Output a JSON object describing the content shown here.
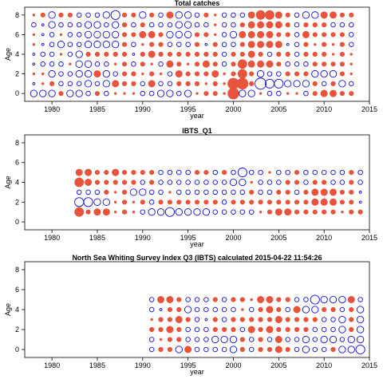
{
  "chart_data": [
    {
      "type": "bubble",
      "title": "Total catches",
      "xlabel": "year",
      "ylabel": "Age",
      "xlim": [
        1977,
        2015
      ],
      "ylim": [
        -0.8,
        8.8
      ],
      "xticks": [
        1980,
        1985,
        1990,
        1995,
        2000,
        2005,
        2010,
        2015
      ],
      "yticks": [
        0,
        2,
        4,
        6,
        8
      ],
      "ages": [
        0,
        1,
        2,
        3,
        4,
        5,
        6,
        7,
        8
      ],
      "years": [
        1978,
        1979,
        1980,
        1981,
        1982,
        1983,
        1984,
        1985,
        1986,
        1987,
        1988,
        1989,
        1990,
        1991,
        1992,
        1993,
        1994,
        1995,
        1996,
        1997,
        1998,
        1999,
        2000,
        2001,
        2002,
        2003,
        2004,
        2005,
        2006,
        2007,
        2008,
        2009,
        2010,
        2011,
        2012,
        2013
      ],
      "residuals_by_age": [
        [
          -3,
          -3,
          -3,
          2,
          -3,
          -3,
          -2,
          2,
          -2,
          1,
          1,
          1,
          -2,
          -2,
          -3,
          -3,
          -2,
          -3,
          1,
          2,
          2,
          1,
          5,
          -3,
          -3,
          1,
          -2,
          -2,
          1,
          1,
          -2,
          2,
          3,
          3,
          2,
          2
        ],
        [
          -1,
          1,
          2,
          -2,
          -2,
          -2,
          -3,
          -2,
          -3,
          3,
          2,
          2,
          -2,
          3,
          -2,
          -2,
          2,
          2,
          2,
          1,
          2,
          1,
          5,
          5,
          2,
          -5,
          -4,
          -4,
          -3,
          -3,
          -3,
          2,
          -2,
          2,
          -3,
          -2
        ],
        [
          1,
          1,
          -3,
          -2,
          -2,
          -3,
          -3,
          3,
          -3,
          -2,
          2,
          2,
          1,
          2,
          1,
          -2,
          3,
          2,
          2,
          2,
          3,
          1,
          2,
          4,
          2,
          -3,
          -2,
          -2,
          2,
          2,
          2,
          -3,
          -3,
          -3,
          2,
          1
        ],
        [
          -1,
          -2,
          -2,
          -2,
          1,
          -3,
          -3,
          -2,
          -2,
          1,
          2,
          -2,
          2,
          1,
          -2,
          3,
          2,
          1,
          2,
          3,
          2,
          -2,
          2,
          4,
          3,
          3,
          3,
          2,
          -2,
          -2,
          -2,
          2,
          2,
          2,
          2,
          1
        ],
        [
          -1,
          -2,
          -2,
          1,
          -2,
          -3,
          2,
          2,
          2,
          2,
          2,
          -1,
          2,
          3,
          2,
          2,
          2,
          2,
          2,
          2,
          2,
          -2,
          2,
          2,
          3,
          2,
          -2,
          2,
          2,
          -2,
          2,
          2,
          2,
          1,
          2,
          1
        ],
        [
          1,
          -1,
          -2,
          -3,
          -2,
          -2,
          -3,
          -3,
          -3,
          -3,
          2,
          -2,
          1,
          2,
          2,
          -2,
          -2,
          -2,
          2,
          -1,
          2,
          -2,
          -2,
          2,
          3,
          3,
          3,
          3,
          -1,
          -2,
          2,
          1,
          2,
          1,
          2,
          -2
        ],
        [
          1,
          -1,
          -2,
          1,
          -2,
          -2,
          -3,
          -3,
          -3,
          -3,
          2,
          2,
          3,
          3,
          2,
          -3,
          -3,
          -3,
          2,
          2,
          1,
          -2,
          -3,
          3,
          3,
          3,
          3,
          2,
          2,
          -2,
          3,
          2,
          2,
          2,
          2,
          -2
        ],
        [
          -2,
          -1,
          -3,
          -2,
          -2,
          -2,
          -3,
          -3,
          -2,
          -3,
          2,
          -2,
          2,
          -2,
          -2,
          -2,
          -3,
          -3,
          -2,
          -2,
          1,
          -2,
          -2,
          2,
          3,
          3,
          3,
          3,
          2,
          -2,
          2,
          2,
          2,
          -2,
          -2,
          -2
        ],
        [
          1,
          2,
          -3,
          2,
          2,
          -2,
          -2,
          -2,
          -3,
          -4,
          2,
          2,
          -3,
          2,
          -2,
          3,
          -3,
          -3,
          -2,
          2,
          1,
          -2,
          -2,
          -2,
          3,
          4,
          4,
          3,
          2,
          -2,
          -3,
          -3,
          3,
          3,
          2,
          2
        ]
      ]
    },
    {
      "type": "bubble",
      "title": "IBTS_Q1",
      "xlabel": "year",
      "ylabel": "Age",
      "xlim": [
        1977,
        2015
      ],
      "ylim": [
        -0.8,
        8.8
      ],
      "xticks": [
        1980,
        1985,
        1990,
        1995,
        2000,
        2005,
        2010,
        2015
      ],
      "yticks": [
        0,
        2,
        4,
        6,
        8
      ],
      "ages": [
        1,
        2,
        3,
        4,
        5
      ],
      "years": [
        1983,
        1984,
        1985,
        1986,
        1987,
        1988,
        1989,
        1990,
        1991,
        1992,
        1993,
        1994,
        1995,
        1996,
        1997,
        1998,
        1999,
        2000,
        2001,
        2002,
        2003,
        2004,
        2005,
        2006,
        2007,
        2008,
        2009,
        2010,
        2011,
        2012,
        2013,
        2014
      ],
      "residuals_by_age": [
        [
          4,
          2,
          3,
          3,
          1,
          2,
          1,
          -2,
          -3,
          -3,
          -4,
          -3,
          -3,
          -3,
          -3,
          -2,
          -2,
          -2,
          -2,
          -2,
          1,
          2,
          3,
          3,
          2,
          2,
          2,
          2,
          2,
          1,
          2,
          2
        ],
        [
          -4,
          -4,
          -3,
          -3,
          1,
          2,
          1,
          2,
          -2,
          2,
          2,
          2,
          2,
          2,
          2,
          2,
          -2,
          2,
          2,
          2,
          2,
          2,
          2,
          2,
          2,
          2,
          3,
          3,
          3,
          2,
          2,
          -1
        ],
        [
          -2,
          -2,
          -2,
          2,
          1,
          2,
          -3,
          -3,
          -2,
          -2,
          1,
          -2,
          -2,
          -2,
          -2,
          -2,
          -2,
          -2,
          -2,
          2,
          -2,
          -2,
          2,
          2,
          -2,
          2,
          3,
          3,
          3,
          2,
          2,
          -1
        ],
        [
          4,
          3,
          2,
          2,
          2,
          2,
          2,
          -2,
          2,
          -2,
          -2,
          -2,
          -2,
          -2,
          -2,
          -2,
          -2,
          -3,
          -3,
          1,
          -2,
          -2,
          -2,
          2,
          2,
          -2,
          2,
          2,
          -2,
          -2,
          2,
          -2
        ],
        [
          3,
          3,
          2,
          2,
          3,
          2,
          2,
          2,
          2,
          -2,
          -2,
          -2,
          -2,
          2,
          2,
          -2,
          2,
          -2,
          -4,
          -2,
          -2,
          1,
          -2,
          -2,
          2,
          -2,
          -2,
          -2,
          -2,
          -2,
          2,
          -2
        ]
      ]
    },
    {
      "type": "bubble",
      "title": "North Sea Whiting Survey Index Q3 (IBTS) calculated 2015-04-22 11:54:26",
      "xlabel": "year",
      "ylabel": "Age",
      "xlim": [
        1977,
        2015
      ],
      "ylim": [
        -0.8,
        8.8
      ],
      "xticks": [
        1980,
        1985,
        1990,
        1995,
        2000,
        2005,
        2010,
        2015
      ],
      "yticks": [
        0,
        2,
        4,
        6,
        8
      ],
      "ages": [
        0,
        1,
        2,
        3,
        4,
        5
      ],
      "years": [
        1991,
        1992,
        1993,
        1994,
        1995,
        1996,
        1997,
        1998,
        1999,
        2000,
        2001,
        2002,
        2003,
        2004,
        2005,
        2006,
        2007,
        2008,
        2009,
        2010,
        2011,
        2012,
        2013,
        2014
      ],
      "residuals_by_age": [
        [
          -2,
          2,
          2,
          -3,
          3,
          -2,
          -2,
          -2,
          -2,
          -3,
          2,
          -2,
          2,
          2,
          3,
          2,
          -2,
          -3,
          -2,
          -2,
          2,
          -3,
          -3,
          -4
        ],
        [
          -2,
          1,
          2,
          2,
          -2,
          -2,
          -2,
          -3,
          -3,
          -3,
          2,
          -2,
          2,
          -2,
          3,
          -2,
          -2,
          -3,
          -2,
          -3,
          -3,
          -2,
          -3,
          -3
        ],
        [
          2,
          2,
          3,
          2,
          -2,
          -2,
          -2,
          2,
          2,
          2,
          -2,
          3,
          2,
          3,
          2,
          2,
          2,
          2,
          -2,
          -2,
          -2,
          -3,
          2,
          -3
        ],
        [
          1,
          2,
          2,
          3,
          2,
          -2,
          -1,
          2,
          -2,
          2,
          2,
          2,
          2,
          2,
          3,
          2,
          2,
          2,
          2,
          -2,
          -2,
          -3,
          2,
          -3
        ],
        [
          -2,
          -1,
          2,
          2,
          -3,
          -2,
          -2,
          -2,
          -2,
          -2,
          1,
          -2,
          2,
          3,
          2,
          -2,
          3,
          -3,
          -3,
          2,
          2,
          -2,
          2,
          -3
        ],
        [
          -2,
          3,
          3,
          2,
          -2,
          -2,
          -2,
          2,
          -2,
          2,
          2,
          1,
          3,
          3,
          2,
          2,
          -2,
          -2,
          -4,
          -3,
          -3,
          -3,
          3,
          -2
        ]
      ]
    }
  ]
}
